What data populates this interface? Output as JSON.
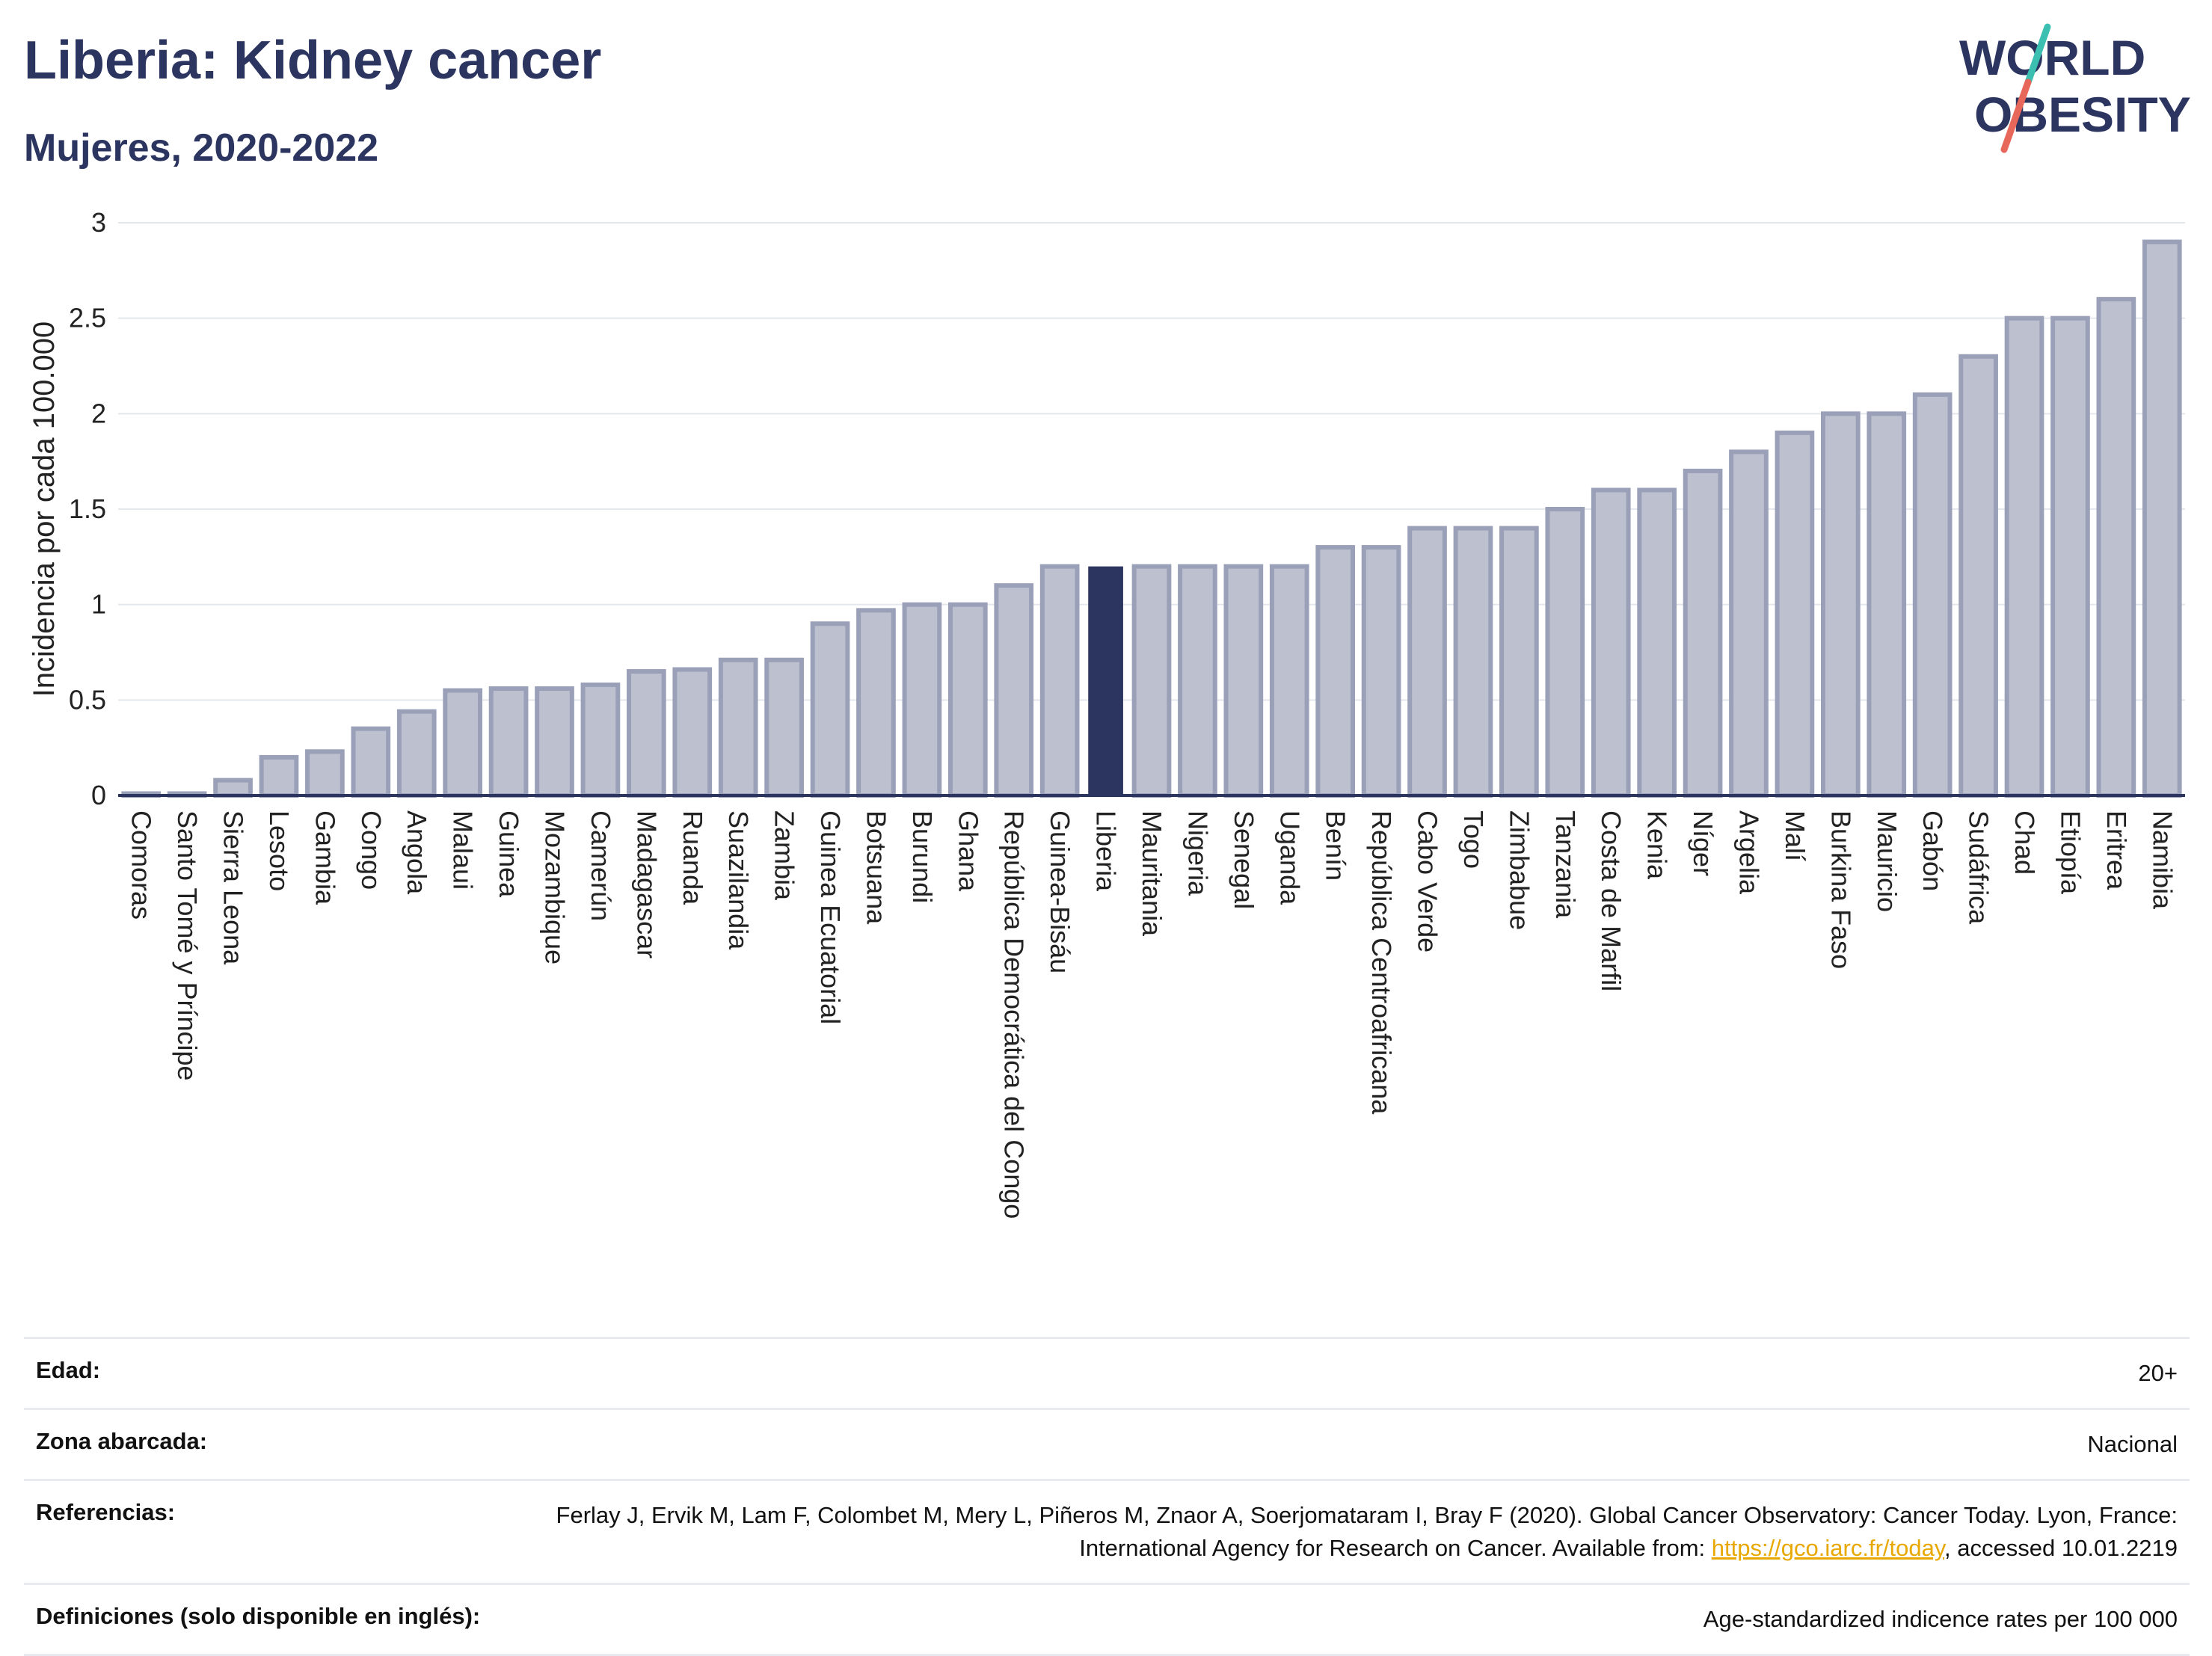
{
  "header": {
    "title": "Liberia: Kidney cancer",
    "subtitle": "Mujeres, 2020-2022"
  },
  "logo": {
    "line1": "WORLD",
    "line2": "OBESITY"
  },
  "colors": {
    "bar_fill": "#bcc0cf",
    "bar_stroke": "#9aa0b8",
    "highlight": "#2b3560",
    "grid": "#e5e7ee",
    "logo_teal": "#3bbfb0",
    "logo_coral": "#e8675b"
  },
  "chart_data": {
    "type": "bar",
    "title": "Liberia: Kidney cancer",
    "subtitle": "Mujeres, 2020-2022",
    "ylabel": "Incidencia por cada 100.000",
    "xlabel": "",
    "ylim": [
      0,
      3
    ],
    "yticks": [
      "0",
      "0.5",
      "1",
      "1.5",
      "2",
      "2.5",
      "3"
    ],
    "grid": true,
    "highlight": "Liberia",
    "categories": [
      "Comoras",
      "Santo Tomé y Príncipe",
      "Sierra Leona",
      "Lesoto",
      "Gambia",
      "Congo",
      "Angola",
      "Malaui",
      "Guinea",
      "Mozambique",
      "Camerún",
      "Madagascar",
      "Ruanda",
      "Suazilandia",
      "Zambia",
      "Guinea Ecuatorial",
      "Botsuana",
      "Burundi",
      "Ghana",
      "República Democrática del Congo",
      "Guinea-Bisáu",
      "Liberia",
      "Mauritania",
      "Nigeria",
      "Senegal",
      "Uganda",
      "Benín",
      "República Centroafricana",
      "Cabo Verde",
      "Togo",
      "Zimbabue",
      "Tanzania",
      "Costa de Marfil",
      "Kenia",
      "Níger",
      "Argelia",
      "Malí",
      "Burkina Faso",
      "Mauricio",
      "Gabón",
      "Sudáfrica",
      "Chad",
      "Etiopía",
      "Eritrea",
      "Namibia"
    ],
    "values": [
      0.01,
      0.01,
      0.08,
      0.2,
      0.23,
      0.35,
      0.44,
      0.55,
      0.56,
      0.56,
      0.58,
      0.65,
      0.66,
      0.71,
      0.71,
      0.9,
      0.97,
      1.0,
      1.0,
      1.1,
      1.2,
      1.2,
      1.2,
      1.2,
      1.2,
      1.2,
      1.3,
      1.3,
      1.4,
      1.4,
      1.4,
      1.5,
      1.6,
      1.6,
      1.7,
      1.8,
      1.9,
      2.0,
      2.0,
      2.1,
      2.3,
      2.5,
      2.5,
      2.6,
      2.9
    ]
  },
  "info": {
    "rows": [
      {
        "key": "Edad:",
        "value": "20+"
      },
      {
        "key": "Zona abarcada:",
        "value": "Nacional"
      },
      {
        "key": "Referencias:",
        "value_before": "Ferlay J, Ervik M, Lam F, Colombet M, Mery L, Piñeros M, Znaor A, Soerjomataram I, Bray F (2020). Global Cancer Observatory: Cancer Today. Lyon, France: International Agency for Research on Cancer. Available from: ",
        "link": "https://gco.iarc.fr/today",
        "value_after": ", accessed 10.01.2219"
      },
      {
        "key": "Definiciones (solo disponible en inglés):",
        "value": "Age-standardized indicence rates per 100 000"
      }
    ]
  }
}
